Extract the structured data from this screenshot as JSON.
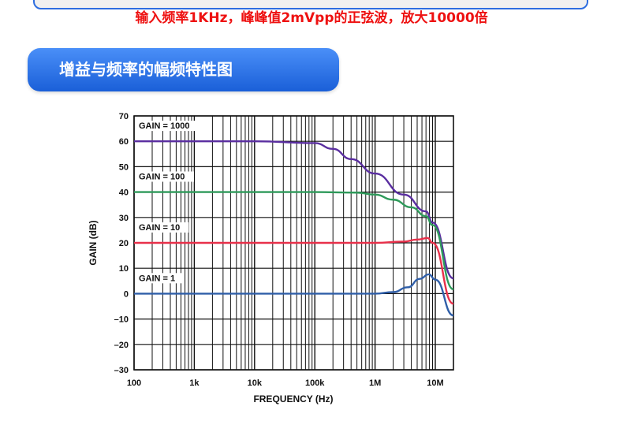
{
  "header": {
    "note": "输入频率1KHz，峰峰值2mVpp的正弦波，放大10000倍"
  },
  "section": {
    "title": "增益与频率的幅频特性图"
  },
  "chart_data": {
    "type": "line",
    "title": "",
    "xlabel": "FREQUENCY (Hz)",
    "ylabel": "GAIN (dB)",
    "xscale": "log",
    "xlim": [
      100,
      20000000
    ],
    "ylim": [
      -30,
      70
    ],
    "grid": true,
    "xticks": [
      {
        "v": 100,
        "label": "100"
      },
      {
        "v": 1000,
        "label": "1k"
      },
      {
        "v": 10000,
        "label": "10k"
      },
      {
        "v": 100000,
        "label": "100k"
      },
      {
        "v": 1000000,
        "label": "1M"
      },
      {
        "v": 10000000,
        "label": "10M"
      }
    ],
    "yticks": [
      {
        "v": 70,
        "label": "70"
      },
      {
        "v": 60,
        "label": "60"
      },
      {
        "v": 50,
        "label": "50"
      },
      {
        "v": 40,
        "label": "40"
      },
      {
        "v": 30,
        "label": "30"
      },
      {
        "v": 20,
        "label": "20"
      },
      {
        "v": 10,
        "label": "10"
      },
      {
        "v": 0,
        "label": "0"
      },
      {
        "v": -10,
        "label": "–10"
      },
      {
        "v": -20,
        "label": "–20"
      },
      {
        "v": -30,
        "label": "–30"
      }
    ],
    "series": [
      {
        "name": "GAIN = 1000",
        "color": "#5a2ea0",
        "label_at": [
          100,
          65
        ],
        "x": [
          100,
          10000,
          100000,
          200000,
          400000,
          1000000,
          3000000,
          7000000,
          9000000,
          20000000
        ],
        "y": [
          60,
          60,
          59.3,
          57,
          53,
          47.3,
          39,
          32.4,
          28,
          6
        ]
      },
      {
        "name": "GAIN = 100",
        "color": "#2e9a5a",
        "label_at": [
          100,
          45
        ],
        "x": [
          100,
          100000,
          500000,
          1000000,
          2000000,
          4000000,
          7000000,
          9000000,
          20000000
        ],
        "y": [
          40,
          40,
          39.8,
          39,
          37,
          34,
          30.5,
          27,
          1.7
        ]
      },
      {
        "name": "GAIN = 10",
        "color": "#e8304a",
        "label_at": [
          100,
          25
        ],
        "x": [
          100,
          1000000,
          3000000,
          5000000,
          7500000,
          9000000,
          20000000
        ],
        "y": [
          20,
          20,
          20.5,
          21.3,
          21.9,
          20,
          -4
        ]
      },
      {
        "name": "GAIN = 1",
        "color": "#2f5ea8",
        "label_at": [
          100,
          5
        ],
        "x": [
          100,
          1000000,
          2000000,
          3500000,
          5500000,
          7800000,
          10000000,
          20000000
        ],
        "y": [
          0,
          0,
          0.6,
          2.5,
          5.8,
          7.6,
          5.5,
          -8.6
        ]
      }
    ]
  }
}
